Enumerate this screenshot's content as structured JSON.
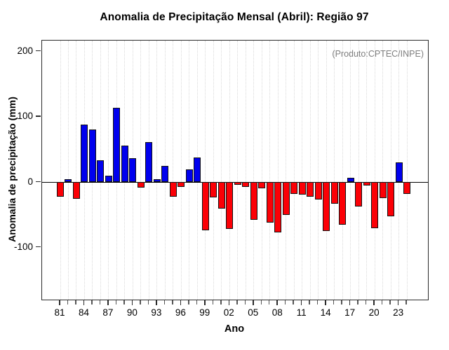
{
  "title": "Anomalia de Precipitação Mensal (Abril): Região 97",
  "annotation": "(Produto:CPTEC/INPE)",
  "chart_data": {
    "type": "bar",
    "title": "Anomalia de Precipitação Mensal (Abril): Região 97",
    "xlabel": "Ano",
    "ylabel": "Anomalia de precipitação (mm)",
    "annotation": "(Produto:CPTEC/INPE)",
    "categories": [
      1981,
      1982,
      1983,
      1984,
      1985,
      1986,
      1987,
      1988,
      1989,
      1990,
      1991,
      1992,
      1993,
      1994,
      1995,
      1996,
      1997,
      1998,
      1999,
      2000,
      2001,
      2002,
      2003,
      2004,
      2005,
      2006,
      2007,
      2008,
      2009,
      2010,
      2011,
      2012,
      2013,
      2014,
      2015,
      2016,
      2017,
      2018,
      2019,
      2020,
      2021,
      2022,
      2023,
      2024
    ],
    "values": [
      -22,
      4,
      -26,
      88,
      80,
      33,
      10,
      113,
      56,
      36,
      -9,
      61,
      4,
      25,
      -23,
      -7,
      19,
      38,
      -74,
      -24,
      -41,
      -72,
      -4,
      -7,
      -58,
      -10,
      -62,
      -77,
      -50,
      -18,
      -19,
      -22,
      -27,
      -75,
      -33,
      -65,
      6,
      -37,
      -5,
      -71,
      -25,
      -52,
      30,
      -18
    ],
    "units": "mm",
    "ylim": [
      -180,
      216
    ],
    "yticks": [
      200,
      100,
      0,
      -100
    ],
    "ytick_labels": [
      "200",
      "100",
      "0",
      "-100"
    ],
    "xtick_labels": [
      "81",
      "84",
      "87",
      "90",
      "93",
      "96",
      "99",
      "02",
      "05",
      "08",
      "11",
      "14",
      "17",
      "20",
      "23"
    ],
    "grid": "vertical-dotted",
    "legend": "none",
    "positive_color": "#0000ee",
    "negative_color": "#fb0006"
  }
}
